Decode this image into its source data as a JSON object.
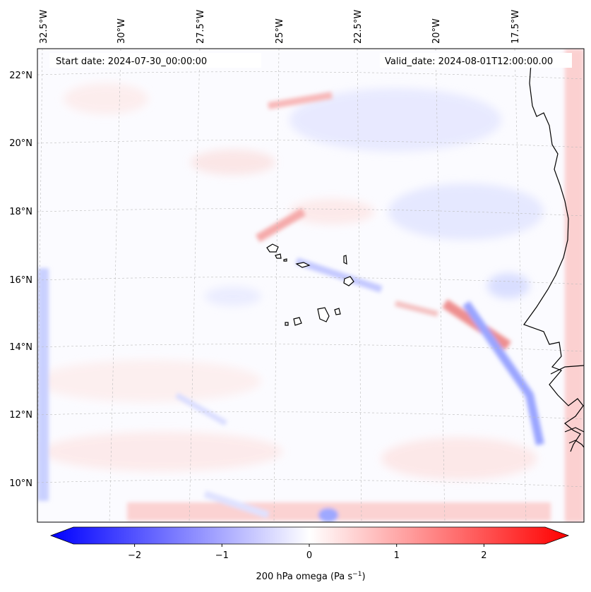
{
  "header": {
    "start_date": "Start date: 2024-07-30_00:00:00",
    "valid_date": "Valid_date: 2024-08-01T12:00:00.00"
  },
  "map": {
    "longitude_labels": [
      "32.5°W",
      "30°W",
      "27.5°W",
      "25°W",
      "22.5°W",
      "20°W",
      "17.5°W"
    ],
    "latitude_labels": [
      "22°N",
      "20°N",
      "18°N",
      "16°N",
      "14°N",
      "12°N",
      "10°N"
    ],
    "field": "200 hPa omega",
    "region": "Cabo Verde islands and West African coast"
  },
  "colorbar": {
    "label_prefix": "200 hPa omega (Pa s",
    "label_exp": "−1",
    "label_suffix": ")",
    "ticks": [
      "−2",
      "−1",
      "0",
      "1",
      "2"
    ],
    "range": [
      -2.7,
      2.7
    ],
    "colors": {
      "min": "#0000ff",
      "mid": "#ffffff",
      "max": "#ff0000"
    }
  }
}
